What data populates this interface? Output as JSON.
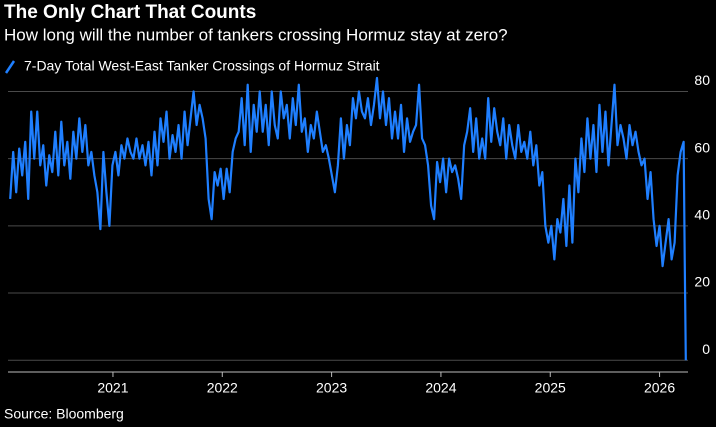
{
  "chart_data": {
    "type": "line",
    "title": "The Only Chart That Counts",
    "subtitle": "How long will the number of tankers crossing Hormuz stay at zero?",
    "source": "Source: Bloomberg",
    "x": [
      2020.06,
      2020.0875,
      2020.115,
      2020.1425,
      2020.17,
      2020.1975,
      2020.225,
      2020.2525,
      2020.28,
      2020.3075,
      2020.335,
      2020.3625,
      2020.39,
      2020.4175,
      2020.445,
      2020.4725,
      2020.5,
      2020.5275,
      2020.555,
      2020.5825,
      2020.61,
      2020.6375,
      2020.665,
      2020.6925,
      2020.72,
      2020.7475,
      2020.775,
      2020.8025,
      2020.83,
      2020.8575,
      2020.885,
      2020.9125,
      2020.94,
      2020.9675,
      2020.995,
      2021.0225,
      2021.05,
      2021.0775,
      2021.105,
      2021.1325,
      2021.16,
      2021.1875,
      2021.215,
      2021.2425,
      2021.27,
      2021.2975,
      2021.325,
      2021.3525,
      2021.38,
      2021.4075,
      2021.435,
      2021.4625,
      2021.49,
      2021.5175,
      2021.545,
      2021.5725,
      2021.6,
      2021.6275,
      2021.655,
      2021.6825,
      2021.71,
      2021.7375,
      2021.765,
      2021.7925,
      2021.82,
      2021.8475,
      2021.875,
      2021.9025,
      2021.93,
      2021.9575,
      2021.985,
      2022.0125,
      2022.04,
      2022.0675,
      2022.095,
      2022.1225,
      2022.15,
      2022.1775,
      2022.205,
      2022.2325,
      2022.26,
      2022.2875,
      2022.315,
      2022.3425,
      2022.37,
      2022.3975,
      2022.425,
      2022.4525,
      2022.48,
      2022.5075,
      2022.535,
      2022.5625,
      2022.59,
      2022.6175,
      2022.645,
      2022.6725,
      2022.7,
      2022.7275,
      2022.755,
      2022.7825,
      2022.81,
      2022.8375,
      2022.865,
      2022.8925,
      2022.92,
      2022.9475,
      2022.975,
      2023.0025,
      2023.03,
      2023.0575,
      2023.085,
      2023.1125,
      2023.14,
      2023.1675,
      2023.195,
      2023.2225,
      2023.25,
      2023.2775,
      2023.305,
      2023.3325,
      2023.36,
      2023.3875,
      2023.415,
      2023.4425,
      2023.47,
      2023.4975,
      2023.525,
      2023.5525,
      2023.58,
      2023.6075,
      2023.635,
      2023.6625,
      2023.69,
      2023.7175,
      2023.745,
      2023.7725,
      2023.8,
      2023.8275,
      2023.855,
      2023.8825,
      2023.91,
      2023.9375,
      2023.965,
      2023.9925,
      2024.02,
      2024.0475,
      2024.075,
      2024.1025,
      2024.13,
      2024.1575,
      2024.185,
      2024.2125,
      2024.24,
      2024.2675,
      2024.295,
      2024.3225,
      2024.35,
      2024.3775,
      2024.405,
      2024.4325,
      2024.46,
      2024.4875,
      2024.515,
      2024.5425,
      2024.57,
      2024.5975,
      2024.625,
      2024.6525,
      2024.68,
      2024.7075,
      2024.735,
      2024.7625,
      2024.79,
      2024.8175,
      2024.845,
      2024.8725,
      2024.9,
      2024.9275,
      2024.955,
      2024.9825,
      2025.01,
      2025.0375,
      2025.065,
      2025.0925,
      2025.12,
      2025.1475,
      2025.175,
      2025.2025,
      2025.23,
      2025.2575,
      2025.285,
      2025.3125,
      2025.34,
      2025.3675,
      2025.395,
      2025.4225,
      2025.45,
      2025.4775,
      2025.505,
      2025.5325,
      2025.56,
      2025.5875,
      2025.615,
      2025.6425,
      2025.67,
      2025.6975,
      2025.725,
      2025.7525,
      2025.78,
      2025.8075,
      2025.835,
      2025.8625,
      2025.89,
      2025.9175,
      2025.945,
      2025.9725,
      2026.0,
      2026.0275,
      2026.055,
      2026.0825,
      2026.11,
      2026.1375,
      2026.165,
      2026.1925,
      2026.22,
      2026.23,
      2026.24
    ],
    "series": [
      {
        "name": "7-Day Total West-East Tanker Crossings of Hormuz Strait",
        "color": "#1f7fff",
        "values": [
          48,
          62,
          50,
          63,
          55,
          65,
          48,
          74,
          60,
          74,
          58,
          64,
          52,
          61,
          56,
          68,
          55,
          71,
          58,
          65,
          54,
          68,
          60,
          72,
          62,
          70,
          58,
          62,
          55,
          50,
          39,
          62,
          50,
          40,
          58,
          62,
          55,
          64,
          60,
          66,
          62,
          60,
          66,
          60,
          64,
          58,
          65,
          55,
          68,
          58,
          72,
          65,
          74,
          60,
          67,
          62,
          70,
          60,
          74,
          64,
          72,
          80,
          70,
          76,
          72,
          66,
          48,
          42,
          56,
          52,
          57,
          48,
          57,
          50,
          62,
          66,
          68,
          78,
          64,
          82,
          62,
          76,
          68,
          80,
          68,
          76,
          64,
          80,
          70,
          66,
          80,
          72,
          76,
          66,
          78,
          70,
          82,
          68,
          72,
          62,
          70,
          66,
          74,
          68,
          62,
          64,
          60,
          55,
          50,
          58,
          72,
          60,
          70,
          64,
          78,
          72,
          80,
          74,
          72,
          78,
          70,
          76,
          84,
          72,
          80,
          70,
          78,
          66,
          74,
          66,
          76,
          62,
          72,
          65,
          68,
          70,
          82,
          66,
          64,
          58,
          46,
          42,
          59,
          53,
          60,
          50,
          60,
          56,
          58,
          54,
          48,
          64,
          68,
          75,
          62,
          72,
          60,
          66,
          60,
          78,
          65,
          75,
          68,
          64,
          72,
          60,
          70,
          64,
          60,
          70,
          62,
          65,
          60,
          68,
          58,
          64,
          52,
          56,
          40,
          35,
          40,
          30,
          42,
          38,
          48,
          34,
          52,
          35,
          60,
          50,
          66,
          56,
          72,
          60,
          70,
          56,
          76,
          62,
          74,
          58,
          70,
          82,
          64,
          70,
          66,
          60,
          70,
          64,
          68,
          62,
          58,
          60,
          48,
          56,
          42,
          34,
          40,
          28,
          35,
          42,
          30,
          35,
          55,
          62,
          65,
          30,
          0
        ]
      }
    ],
    "xlim": [
      2020.04,
      2026.26
    ],
    "xticks": [
      2021,
      2022,
      2023,
      2024,
      2025,
      2026
    ],
    "ylim": [
      -3.5,
      84
    ],
    "yticks": [
      0,
      20,
      40,
      60,
      80
    ],
    "grid": true
  }
}
